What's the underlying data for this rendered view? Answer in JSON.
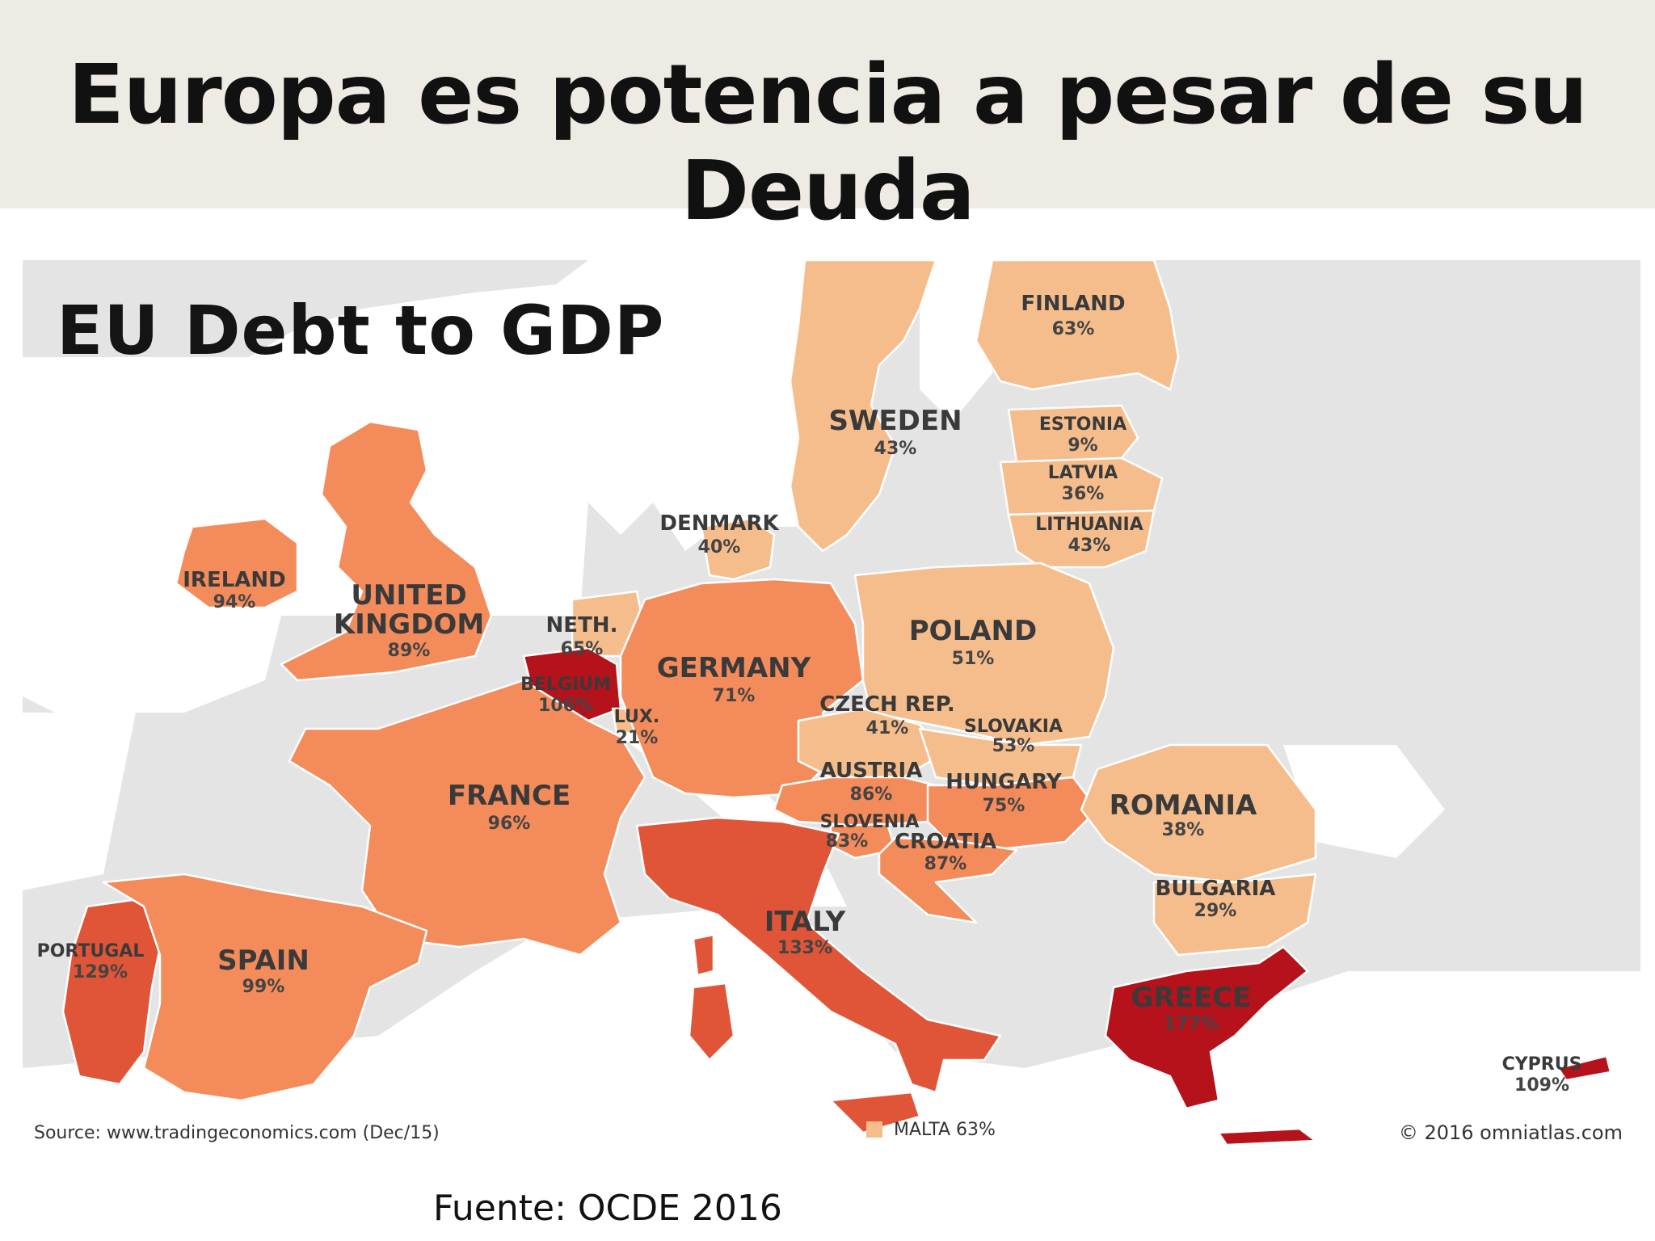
{
  "slide": {
    "title": "Europa es potencia a pesar de su Deuda",
    "caption": "Fuente: OCDE 2016"
  },
  "map": {
    "title": "EU Debt to GDP",
    "source": "Source: www.tradingeconomics.com (Dec/15)",
    "copyright": "© 2016 omniatlas.com",
    "legend_note": "MALTA 63%",
    "colors": {
      "low": "#f6bd8c",
      "mid": "#f48b5a",
      "high": "#e05538",
      "very_high": "#b5121b",
      "non_eu": "#e4e4e4",
      "sea": "#ffffff"
    },
    "countries": [
      {
        "id": "finland",
        "name": "FINLAND",
        "value": "63%"
      },
      {
        "id": "sweden",
        "name": "SWEDEN",
        "value": "43%"
      },
      {
        "id": "estonia",
        "name": "ESTONIA",
        "value": "9%"
      },
      {
        "id": "latvia",
        "name": "LATVIA",
        "value": "36%"
      },
      {
        "id": "lithuania",
        "name": "LITHUANIA",
        "value": "43%"
      },
      {
        "id": "denmark",
        "name": "DENMARK",
        "value": "40%"
      },
      {
        "id": "ireland",
        "name": "IRELAND",
        "value": "94%"
      },
      {
        "id": "uk",
        "name": "UNITED KINGDOM",
        "name_line1": "UNITED",
        "name_line2": "KINGDOM",
        "value": "89%"
      },
      {
        "id": "netherlands",
        "name": "NETH.",
        "value": "65%"
      },
      {
        "id": "belgium",
        "name": "BELGIUM",
        "value": "106%"
      },
      {
        "id": "luxembourg",
        "name": "LUX.",
        "value": "21%"
      },
      {
        "id": "germany",
        "name": "GERMANY",
        "value": "71%"
      },
      {
        "id": "poland",
        "name": "POLAND",
        "value": "51%"
      },
      {
        "id": "czech",
        "name": "CZECH REP.",
        "value": "41%"
      },
      {
        "id": "slovakia",
        "name": "SLOVAKIA",
        "value": "53%"
      },
      {
        "id": "austria",
        "name": "AUSTRIA",
        "value": "86%"
      },
      {
        "id": "hungary",
        "name": "HUNGARY",
        "value": "75%"
      },
      {
        "id": "slovenia",
        "name": "SLOVENIA",
        "value": "83%"
      },
      {
        "id": "croatia",
        "name": "CROATIA",
        "value": "87%"
      },
      {
        "id": "france",
        "name": "FRANCE",
        "value": "96%"
      },
      {
        "id": "romania",
        "name": "ROMANIA",
        "value": "38%"
      },
      {
        "id": "bulgaria",
        "name": "BULGARIA",
        "value": "29%"
      },
      {
        "id": "portugal",
        "name": "PORTUGAL",
        "value": "129%"
      },
      {
        "id": "spain",
        "name": "SPAIN",
        "value": "99%"
      },
      {
        "id": "italy",
        "name": "ITALY",
        "value": "133%"
      },
      {
        "id": "greece",
        "name": "GREECE",
        "value": "177%"
      },
      {
        "id": "cyprus",
        "name": "CYPRUS",
        "value": "109%"
      }
    ]
  }
}
